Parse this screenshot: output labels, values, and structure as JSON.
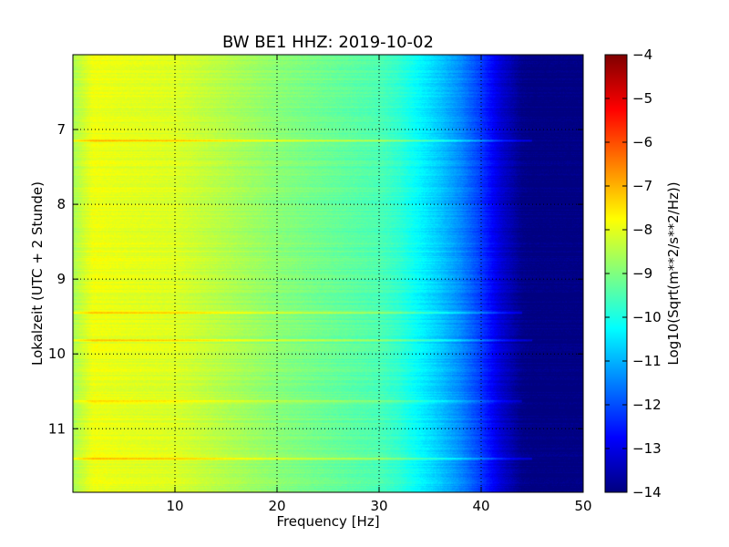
{
  "chart_data": {
    "type": "heatmap",
    "title": "BW BE1 HHZ: 2019-10-02",
    "xlabel": "Frequency [Hz]",
    "ylabel": "Lokalzeit (UTC + 2 Stunde)",
    "xlim": [
      0,
      50
    ],
    "ylim": [
      6.0,
      11.85
    ],
    "y_inverted": true,
    "x_ticks": [
      10,
      20,
      30,
      40,
      50
    ],
    "x_tick_labels": [
      "10",
      "20",
      "30",
      "40",
      "50"
    ],
    "y_ticks": [
      7,
      8,
      9,
      10,
      11
    ],
    "y_tick_labels": [
      "7",
      "8",
      "9",
      "10",
      "11"
    ],
    "grid": true,
    "grid_style": "dotted",
    "colormap": "jet",
    "colorbar": {
      "label": "Log10(Sqrt(m**2/s**2/Hz))",
      "min": -14,
      "max": -4,
      "ticks": [
        -4,
        -5,
        -6,
        -7,
        -8,
        -9,
        -10,
        -11,
        -12,
        -13,
        -14
      ],
      "tick_labels": [
        "−4",
        "−5",
        "−6",
        "−7",
        "−8",
        "−9",
        "−10",
        "−11",
        "−12",
        "−13",
        "−14"
      ]
    },
    "spectral_profile": {
      "frequency_hz": [
        0,
        2,
        5,
        10,
        15,
        20,
        25,
        30,
        32,
        34,
        36,
        38,
        40,
        42,
        44,
        45,
        50
      ],
      "level": [
        -8.6,
        -7.9,
        -8.0,
        -8.1,
        -8.5,
        -8.9,
        -9.2,
        -9.5,
        -9.8,
        -10.3,
        -10.8,
        -11.4,
        -12.2,
        -13.2,
        -13.9,
        -14.0,
        -14.0
      ]
    },
    "time_bands": [
      {
        "time": 7.15,
        "level_offset": 0.9,
        "max_frequency_hz": 45
      },
      {
        "time": 9.45,
        "level_offset": 0.9,
        "max_frequency_hz": 44
      },
      {
        "time": 9.82,
        "level_offset": 0.85,
        "max_frequency_hz": 45
      },
      {
        "time": 10.63,
        "level_offset": 0.8,
        "max_frequency_hz": 44
      },
      {
        "time": 11.4,
        "level_offset": 1.0,
        "max_frequency_hz": 45
      }
    ]
  }
}
